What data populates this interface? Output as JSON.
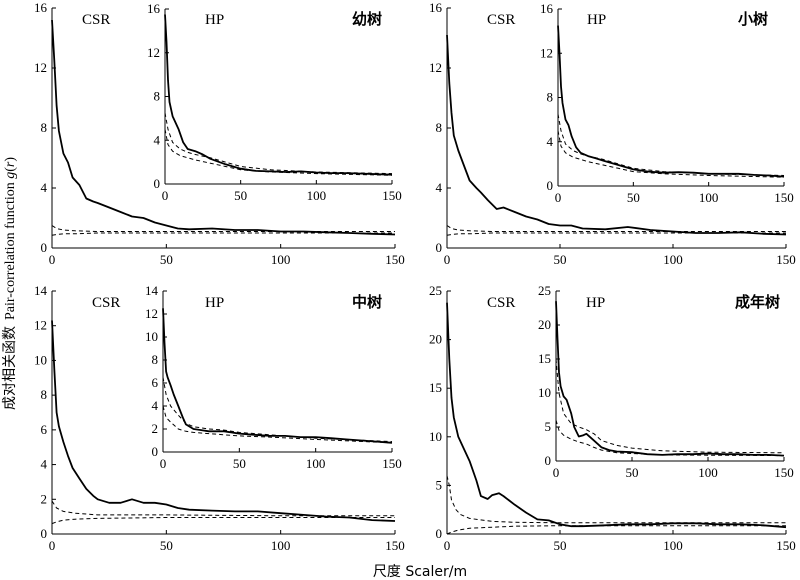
{
  "figure": {
    "ylabel_cn": "成对相关函数",
    "ylabel_en": "Pair-correlation function",
    "ylabel_fn": "g",
    "ylabel_arg": "r",
    "xlabel": "尺度 Scaler/m"
  },
  "chart_data": [
    {
      "type": "line",
      "id": "seedling-csr",
      "title": "CSR",
      "xlim": [
        0,
        150
      ],
      "ylim": [
        0,
        16
      ],
      "xticks": [
        0,
        50,
        100,
        150
      ],
      "yticks": [
        0,
        4,
        8,
        12,
        16
      ],
      "series": [
        {
          "style": "observed",
          "x": [
            0,
            1,
            2,
            3,
            5,
            7,
            9,
            12,
            15,
            18,
            20,
            25,
            30,
            35,
            40,
            45,
            50,
            55,
            60,
            70,
            80,
            90,
            100,
            110,
            120,
            130,
            140,
            150
          ],
          "values": [
            15.2,
            12.5,
            9.5,
            7.8,
            6.3,
            5.7,
            4.7,
            4.2,
            3.3,
            3.1,
            3.0,
            2.7,
            2.4,
            2.1,
            2.0,
            1.7,
            1.5,
            1.3,
            1.25,
            1.3,
            1.2,
            1.2,
            1.1,
            1.1,
            1.05,
            1.0,
            0.95,
            0.9
          ]
        },
        {
          "style": "envelope-upper",
          "x": [
            0,
            2,
            5,
            10,
            20,
            50,
            100,
            150
          ],
          "values": [
            1.5,
            1.3,
            1.2,
            1.15,
            1.1,
            1.1,
            1.1,
            1.1
          ]
        },
        {
          "style": "envelope-lower",
          "x": [
            0,
            2,
            5,
            10,
            20,
            50,
            100,
            150
          ],
          "values": [
            0.85,
            0.9,
            0.95,
            0.95,
            1.0,
            1.0,
            1.0,
            1.0
          ]
        }
      ]
    },
    {
      "type": "line",
      "id": "seedling-hp",
      "title": "HP",
      "label": "幼树",
      "xlim": [
        0,
        150
      ],
      "ylim": [
        0,
        16
      ],
      "xticks": [
        0,
        50,
        100,
        150
      ],
      "yticks": [
        0,
        4,
        8,
        12,
        16
      ],
      "series": [
        {
          "style": "observed",
          "x": [
            0,
            1,
            2,
            3,
            5,
            7,
            9,
            12,
            15,
            20,
            25,
            30,
            40,
            50,
            60,
            70,
            80,
            90,
            100,
            110,
            120,
            130,
            140,
            150
          ],
          "values": [
            15.5,
            13,
            9.5,
            7.5,
            6.2,
            5.6,
            5.0,
            3.8,
            3.2,
            3.0,
            2.7,
            2.3,
            1.8,
            1.4,
            1.2,
            1.15,
            1.1,
            1.15,
            1.05,
            1.0,
            1.0,
            0.95,
            0.9,
            0.85
          ]
        },
        {
          "style": "envelope-upper",
          "x": [
            0,
            2,
            5,
            10,
            15,
            20,
            30,
            40,
            50,
            70,
            100,
            150
          ],
          "values": [
            6.5,
            5.0,
            3.8,
            3.2,
            2.9,
            2.7,
            2.4,
            2.0,
            1.6,
            1.3,
            1.1,
            0.95
          ]
        },
        {
          "style": "envelope-lower",
          "x": [
            0,
            2,
            5,
            10,
            15,
            20,
            30,
            40,
            50,
            70,
            100,
            150
          ],
          "values": [
            5.0,
            3.6,
            3.0,
            2.6,
            2.4,
            2.2,
            1.9,
            1.6,
            1.3,
            1.1,
            0.95,
            0.8
          ]
        }
      ]
    },
    {
      "type": "line",
      "id": "sapling-csr",
      "title": "CSR",
      "xlim": [
        0,
        150
      ],
      "ylim": [
        0,
        16
      ],
      "xticks": [
        0,
        50,
        100,
        150
      ],
      "yticks": [
        0,
        4,
        8,
        12,
        16
      ],
      "series": [
        {
          "style": "observed",
          "x": [
            0,
            1,
            2,
            3,
            5,
            7,
            10,
            13,
            15,
            18,
            20,
            22,
            25,
            30,
            35,
            40,
            45,
            50,
            55,
            60,
            70,
            80,
            90,
            100,
            110,
            120,
            130,
            140,
            150
          ],
          "values": [
            14.2,
            11,
            9,
            7.5,
            6.5,
            5.7,
            4.5,
            4.0,
            3.7,
            3.2,
            2.9,
            2.6,
            2.7,
            2.4,
            2.1,
            1.9,
            1.6,
            1.5,
            1.5,
            1.3,
            1.25,
            1.4,
            1.2,
            1.1,
            1.0,
            1.0,
            1.05,
            0.95,
            0.9
          ]
        },
        {
          "style": "envelope-upper",
          "x": [
            0,
            2,
            5,
            10,
            20,
            50,
            100,
            150
          ],
          "values": [
            1.5,
            1.3,
            1.2,
            1.15,
            1.1,
            1.1,
            1.1,
            1.1
          ]
        },
        {
          "style": "envelope-lower",
          "x": [
            0,
            2,
            5,
            10,
            20,
            50,
            100,
            150
          ],
          "values": [
            0.85,
            0.9,
            0.95,
            0.95,
            1.0,
            1.0,
            1.0,
            1.0
          ]
        }
      ]
    },
    {
      "type": "line",
      "id": "sapling-hp",
      "title": "HP",
      "label": "小树",
      "xlim": [
        0,
        150
      ],
      "ylim": [
        0,
        16
      ],
      "xticks": [
        0,
        50,
        100,
        150
      ],
      "yticks": [
        0,
        4,
        8,
        12,
        16
      ],
      "series": [
        {
          "style": "observed",
          "x": [
            0,
            1,
            2,
            3,
            5,
            7,
            9,
            12,
            15,
            20,
            25,
            30,
            40,
            50,
            60,
            70,
            80,
            90,
            100,
            110,
            120,
            130,
            140,
            150
          ],
          "values": [
            14.5,
            12,
            9,
            7.5,
            6.0,
            5.5,
            4.5,
            3.5,
            3.0,
            2.7,
            2.5,
            2.3,
            1.9,
            1.5,
            1.3,
            1.2,
            1.25,
            1.2,
            1.1,
            1.1,
            1.1,
            1.0,
            0.95,
            0.85
          ]
        },
        {
          "style": "envelope-upper",
          "x": [
            0,
            2,
            5,
            10,
            15,
            20,
            30,
            40,
            50,
            70,
            100,
            150
          ],
          "values": [
            6.5,
            5.0,
            3.8,
            3.2,
            2.9,
            2.7,
            2.4,
            2.0,
            1.6,
            1.3,
            1.1,
            0.95
          ]
        },
        {
          "style": "envelope-lower",
          "x": [
            0,
            2,
            5,
            10,
            15,
            20,
            30,
            40,
            50,
            70,
            100,
            150
          ],
          "values": [
            5.0,
            3.6,
            3.0,
            2.6,
            2.4,
            2.2,
            1.9,
            1.6,
            1.3,
            1.1,
            0.95,
            0.8
          ]
        }
      ]
    },
    {
      "type": "line",
      "id": "medium-csr",
      "title": "CSR",
      "xlim": [
        0,
        150
      ],
      "ylim": [
        0,
        14
      ],
      "xticks": [
        0,
        50,
        100,
        150
      ],
      "yticks": [
        0,
        2,
        4,
        6,
        8,
        10,
        12,
        14
      ],
      "series": [
        {
          "style": "observed",
          "x": [
            0,
            1,
            2,
            3,
            5,
            7,
            9,
            12,
            15,
            18,
            20,
            25,
            30,
            35,
            40,
            45,
            50,
            55,
            60,
            70,
            80,
            90,
            100,
            110,
            120,
            130,
            140,
            150
          ],
          "values": [
            12.3,
            9.5,
            7.0,
            6.2,
            5.3,
            4.5,
            3.8,
            3.2,
            2.6,
            2.2,
            2.0,
            1.8,
            1.8,
            2.0,
            1.8,
            1.8,
            1.7,
            1.5,
            1.4,
            1.35,
            1.3,
            1.3,
            1.2,
            1.1,
            1.0,
            0.95,
            0.8,
            0.75
          ]
        },
        {
          "style": "envelope-upper",
          "x": [
            0,
            2,
            5,
            10,
            20,
            50,
            100,
            150
          ],
          "values": [
            1.9,
            1.5,
            1.3,
            1.2,
            1.1,
            1.1,
            1.05,
            1.05
          ]
        },
        {
          "style": "envelope-lower",
          "x": [
            0,
            2,
            5,
            10,
            20,
            50,
            100,
            150
          ],
          "values": [
            0.6,
            0.7,
            0.8,
            0.85,
            0.9,
            0.95,
            0.95,
            0.95
          ]
        }
      ]
    },
    {
      "type": "line",
      "id": "medium-hp",
      "title": "HP",
      "label": "中树",
      "xlim": [
        0,
        150
      ],
      "ylim": [
        0,
        14
      ],
      "xticks": [
        0,
        50,
        100,
        150
      ],
      "yticks": [
        0,
        2,
        4,
        6,
        8,
        10,
        12,
        14
      ],
      "series": [
        {
          "style": "observed",
          "x": [
            0,
            1,
            2,
            3,
            5,
            7,
            10,
            13,
            15,
            20,
            25,
            30,
            40,
            50,
            60,
            70,
            80,
            90,
            100,
            110,
            120,
            130,
            140,
            150
          ],
          "values": [
            12.5,
            9.5,
            7.0,
            6.5,
            5.8,
            5.0,
            4.0,
            3.0,
            2.4,
            2.0,
            1.9,
            1.8,
            1.8,
            1.6,
            1.5,
            1.4,
            1.4,
            1.3,
            1.3,
            1.2,
            1.1,
            1.0,
            0.9,
            0.8
          ]
        },
        {
          "style": "envelope-upper",
          "x": [
            0,
            2,
            5,
            10,
            15,
            20,
            30,
            40,
            50,
            70,
            100,
            150
          ],
          "values": [
            6.5,
            5.0,
            4.0,
            3.2,
            2.5,
            2.2,
            2.0,
            1.9,
            1.7,
            1.5,
            1.2,
            0.9
          ]
        },
        {
          "style": "envelope-lower",
          "x": [
            0,
            2,
            5,
            10,
            15,
            20,
            30,
            40,
            50,
            70,
            100,
            150
          ],
          "values": [
            4.0,
            3.0,
            2.6,
            2.0,
            1.8,
            1.7,
            1.6,
            1.5,
            1.4,
            1.3,
            1.1,
            0.8
          ]
        }
      ]
    },
    {
      "type": "line",
      "id": "adult-csr",
      "title": "CSR",
      "xlim": [
        0,
        150
      ],
      "ylim": [
        0,
        25
      ],
      "xticks": [
        0,
        50,
        100,
        150
      ],
      "yticks": [
        0,
        5,
        10,
        15,
        20,
        25
      ],
      "series": [
        {
          "style": "observed",
          "x": [
            0,
            1,
            2,
            3,
            5,
            7,
            10,
            13,
            15,
            18,
            20,
            23,
            25,
            30,
            35,
            40,
            45,
            50,
            55,
            60,
            70,
            80,
            90,
            100,
            110,
            120,
            130,
            140,
            150
          ],
          "values": [
            23.8,
            18,
            14,
            12,
            10,
            9,
            7.5,
            5.5,
            3.9,
            3.6,
            4.0,
            4.2,
            3.9,
            3.0,
            2.2,
            1.5,
            1.4,
            1.0,
            0.8,
            0.8,
            0.9,
            1.0,
            1.0,
            1.1,
            1.1,
            1.0,
            1.0,
            0.9,
            0.7
          ]
        },
        {
          "style": "envelope-upper",
          "x": [
            0,
            1,
            2,
            4,
            6,
            10,
            20,
            30,
            50,
            100,
            150
          ],
          "values": [
            6.0,
            5.0,
            3.5,
            2.5,
            2.0,
            1.6,
            1.3,
            1.2,
            1.15,
            1.15,
            1.15
          ]
        },
        {
          "style": "envelope-lower",
          "x": [
            0,
            2,
            5,
            10,
            20,
            30,
            50,
            100,
            150
          ],
          "values": [
            0.0,
            0.2,
            0.4,
            0.6,
            0.7,
            0.8,
            0.85,
            0.85,
            0.85
          ]
        }
      ]
    },
    {
      "type": "line",
      "id": "adult-hp",
      "title": "HP",
      "label": "成年树",
      "xlim": [
        0,
        150
      ],
      "ylim": [
        0,
        25
      ],
      "xticks": [
        0,
        50,
        100,
        150
      ],
      "yticks": [
        0,
        5,
        10,
        15,
        20,
        25
      ],
      "series": [
        {
          "style": "observed",
          "x": [
            0,
            1,
            2,
            3,
            5,
            7,
            10,
            12,
            15,
            18,
            20,
            25,
            30,
            35,
            40,
            50,
            60,
            70,
            80,
            90,
            100,
            110,
            120,
            130,
            140,
            150
          ],
          "values": [
            23.5,
            18,
            13,
            11,
            9.5,
            9,
            7,
            5,
            3.6,
            3.8,
            4.0,
            3.0,
            2.0,
            1.6,
            1.4,
            1.3,
            1.0,
            0.9,
            1.0,
            1.0,
            1.1,
            1.0,
            1.0,
            0.9,
            0.9,
            0.8
          ]
        },
        {
          "style": "envelope-upper",
          "x": [
            0,
            2,
            5,
            10,
            15,
            20,
            25,
            30,
            40,
            50,
            70,
            100,
            150
          ],
          "values": [
            15,
            10,
            7,
            5.5,
            5.0,
            4.6,
            4.0,
            3.0,
            2.3,
            1.9,
            1.5,
            1.3,
            1.2
          ]
        },
        {
          "style": "envelope-lower",
          "x": [
            0,
            2,
            5,
            10,
            15,
            20,
            25,
            30,
            40,
            50,
            70,
            100,
            150
          ],
          "values": [
            6,
            4.5,
            3.8,
            3.2,
            2.8,
            2.5,
            2.0,
            1.6,
            1.2,
            1.1,
            0.9,
            0.85,
            0.8
          ]
        }
      ]
    }
  ]
}
